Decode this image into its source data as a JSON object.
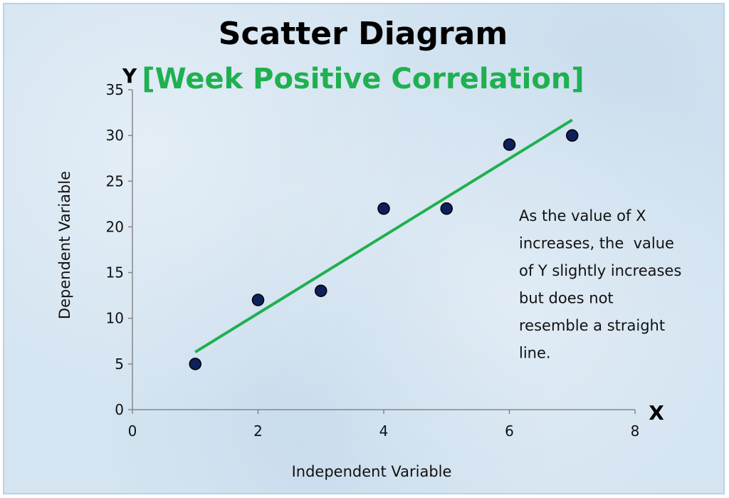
{
  "chart_data": {
    "type": "scatter",
    "title": "Scatter Diagram",
    "subtitle": "[Week Positive Correlation]",
    "xlabel": "Independent Variable",
    "ylabel": "Dependent Variable",
    "x_axis_letter": "X",
    "y_axis_letter": "Y",
    "xlim": [
      0,
      8
    ],
    "ylim": [
      0,
      35
    ],
    "x_ticks": [
      "0",
      "2",
      "4",
      "6",
      "8"
    ],
    "y_ticks": [
      "0",
      "5",
      "10",
      "15",
      "20",
      "25",
      "30",
      "35"
    ],
    "grid": false,
    "points": [
      {
        "x": 1,
        "y": 5
      },
      {
        "x": 2,
        "y": 12
      },
      {
        "x": 3,
        "y": 13
      },
      {
        "x": 4,
        "y": 22
      },
      {
        "x": 5,
        "y": 22
      },
      {
        "x": 6,
        "y": 29
      },
      {
        "x": 7,
        "y": 30
      }
    ],
    "trendline": {
      "x": [
        1,
        7
      ],
      "y": [
        6.3,
        31.7
      ]
    },
    "annotation": [
      "As the value of X",
      "increases, the  value",
      "of Y slightly increases",
      "but does not",
      "resemble a straight",
      "line."
    ],
    "colors": {
      "title": "#000000",
      "subtitle": "#1fb050",
      "trendline": "#1fb050",
      "marker_fill": "#0d1f5c",
      "marker_stroke": "#000000"
    }
  }
}
